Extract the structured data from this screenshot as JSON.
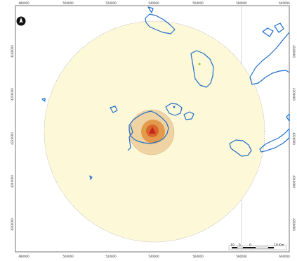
{
  "map": {
    "x_ticks_top": [
      "480000",
      "500000",
      "520000",
      "540000",
      "560000",
      "580000",
      "600000"
    ],
    "x_ticks_bottom": [
      "480000",
      "500000",
      "520000",
      "540000",
      "560000",
      "580000",
      "600000"
    ],
    "y_ticks_left": [
      "4180000",
      "4200000",
      "4220000",
      "4240000",
      "4260000"
    ],
    "y_ticks_right": [
      "4180000",
      "4200000",
      "4220000",
      "4240000",
      "4260000"
    ],
    "scale_bar": {
      "labels": [
        "10",
        "5",
        "0",
        "10 Km"
      ]
    },
    "north_arrow": "north-arrow-icon",
    "colors": {
      "outer_zone": "#fdf8d8",
      "zone_2": "#efd3a2",
      "zone_3": "#e49a4c",
      "zone_4": "#d9652b",
      "zone_5": "#c5251e",
      "coastline": "#1f6fc9",
      "grid": "#b8b8b8"
    }
  }
}
